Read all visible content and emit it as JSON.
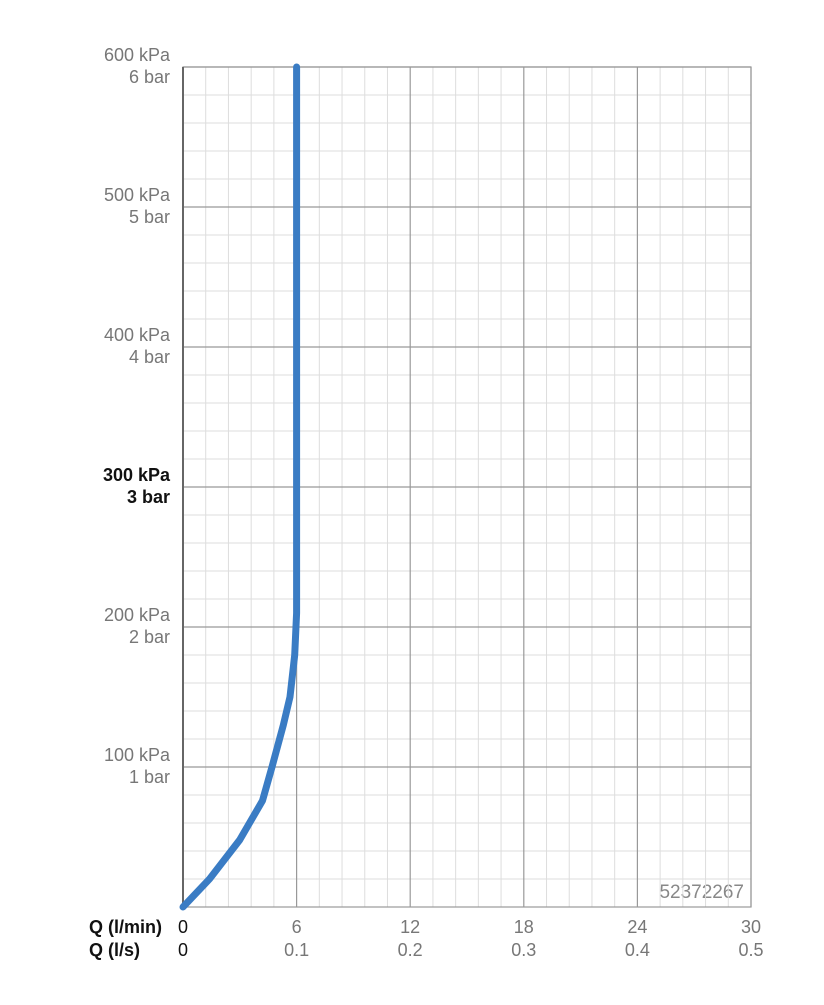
{
  "chart_data": {
    "type": "line",
    "xlabel": "Q (l/min)",
    "x2label": "Q (l/s)",
    "xlim": [
      0,
      30
    ],
    "xticks": [
      0,
      6,
      12,
      18,
      24,
      30
    ],
    "x2lim": [
      0,
      0.5
    ],
    "x2ticks": [
      0,
      0.1,
      0.2,
      0.3,
      0.4,
      0.5
    ],
    "ylim": [
      0,
      600
    ],
    "yticks": [
      {
        "value": 100,
        "label": "100 kPa"
      },
      {
        "value": 200,
        "label": "200 kPa"
      },
      {
        "value": 300,
        "label": "300 kPa"
      },
      {
        "value": 400,
        "label": "400 kPa"
      },
      {
        "value": 500,
        "label": "500 kPa"
      },
      {
        "value": 600,
        "label": "600 kPa"
      }
    ],
    "y2lim": [
      0,
      6
    ],
    "y2ticks": [
      {
        "value": 1,
        "label": "1 bar"
      },
      {
        "value": 2,
        "label": "2 bar"
      },
      {
        "value": 3,
        "label": "3 bar"
      },
      {
        "value": 4,
        "label": "4 bar"
      },
      {
        "value": 5,
        "label": "5 bar"
      },
      {
        "value": 6,
        "label": "6 bar"
      }
    ],
    "emphasized_y": 300,
    "grid": true,
    "minor_divisions": 5,
    "annotation": "52372267",
    "series": [
      {
        "color": "#3a7cc4",
        "x": [
          0,
          1.4,
          3.0,
          4.2,
          4.7,
          5.3,
          5.65,
          5.9,
          6,
          6
        ],
        "values": [
          0,
          20,
          48,
          76,
          100,
          130,
          150,
          180,
          210,
          600
        ]
      }
    ]
  }
}
